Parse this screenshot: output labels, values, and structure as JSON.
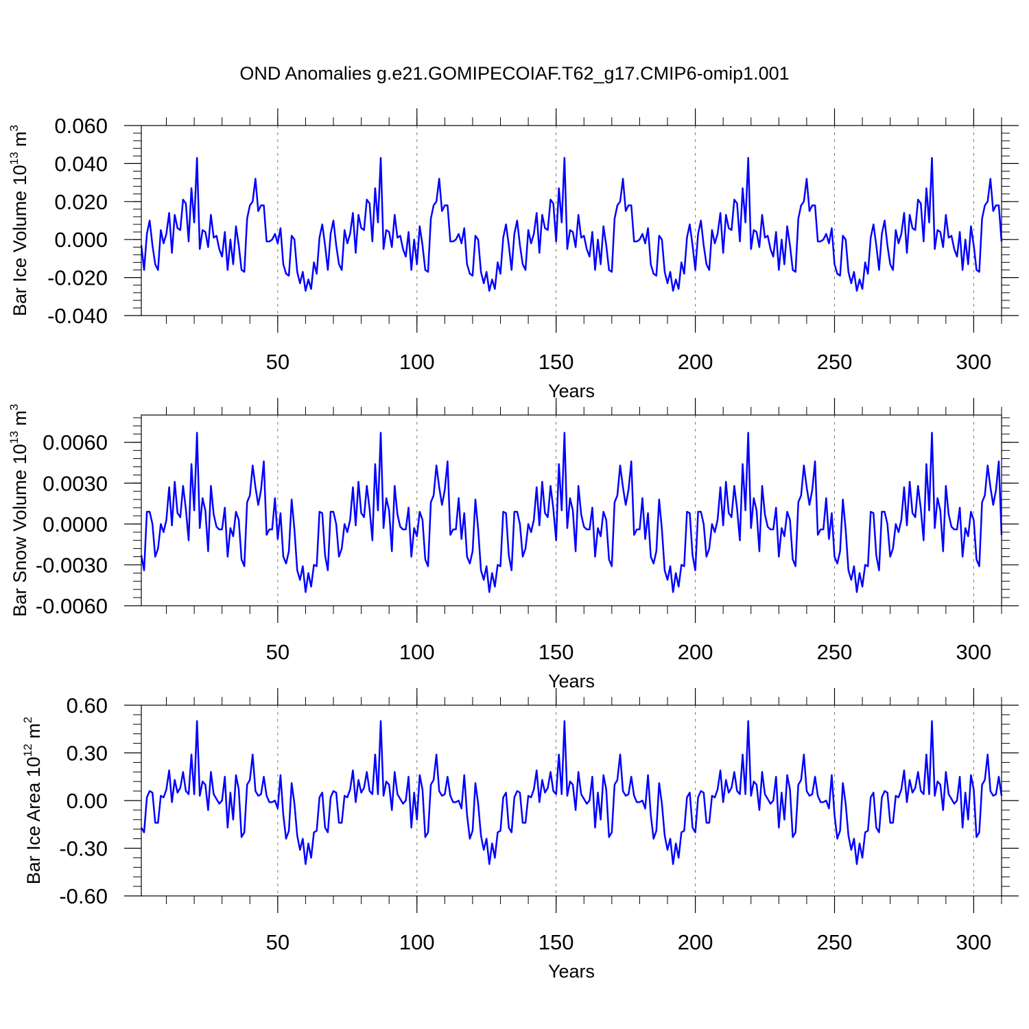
{
  "title": "OND Anomalies g.e21.GOMIPECOIAF.T62_g17.CMIP6-omip1.001",
  "chart_data": [
    {
      "type": "line",
      "ylabel": "Bar Ice Volume 10",
      "ylabel_exp": "13",
      "ylabel_unit": " m",
      "ylabel_unit_exp": "3",
      "xlabel": "Years",
      "xlim": [
        1,
        310
      ],
      "ylim": [
        -0.04,
        0.06
      ],
      "yticks": [
        -0.04,
        -0.02,
        0.0,
        0.02,
        0.04,
        0.06
      ],
      "ytick_labels": [
        "-0.040",
        "-0.020",
        "0.000",
        "0.020",
        "0.040",
        "0.060"
      ],
      "xticks": [
        50,
        100,
        150,
        200,
        250,
        300
      ],
      "xtick_labels": [
        "50",
        "100",
        "150",
        "200",
        "250",
        "300"
      ],
      "color": "#0000ff",
      "cycle_values": [
        -0.003,
        -0.016,
        0.003,
        0.01,
        -0.003,
        -0.013,
        -0.016,
        0.005,
        -0.002,
        0.003,
        0.014,
        -0.007,
        0.013,
        0.006,
        0.005,
        0.021,
        0.019,
        -0.001,
        0.027,
        0.009,
        0.043,
        -0.005,
        0.005,
        0.004,
        -0.004,
        0.013,
        0.001,
        0.002,
        -0.005,
        -0.009,
        0.004,
        -0.016,
        0.0,
        -0.013,
        0.007,
        -0.003,
        -0.016,
        -0.017,
        0.011,
        0.018,
        0.02,
        0.032,
        0.015,
        0.018,
        0.018,
        -0.001,
        -0.001,
        0.0,
        0.003,
        -0.002,
        0.006,
        -0.013,
        -0.018,
        -0.019,
        0.002,
        0.0,
        -0.017,
        -0.023,
        -0.017,
        -0.027,
        -0.021,
        -0.026,
        -0.012,
        -0.018,
        0.001,
        0.008
      ]
    },
    {
      "type": "line",
      "ylabel": "Bar Snow Volume 10",
      "ylabel_exp": "13",
      "ylabel_unit": " m",
      "ylabel_unit_exp": "3",
      "xlabel": "Years",
      "xlim": [
        1,
        310
      ],
      "ylim": [
        -0.006,
        0.008
      ],
      "yticks": [
        -0.006,
        -0.003,
        0.0,
        0.003,
        0.006
      ],
      "ytick_labels": [
        "-0.0060",
        "-0.0030",
        "0.0000",
        "0.0030",
        "0.0060"
      ],
      "xticks": [
        50,
        100,
        150,
        200,
        250,
        300
      ],
      "xtick_labels": [
        "50",
        "100",
        "150",
        "200",
        "250",
        "300"
      ],
      "color": "#0000ff",
      "cycle_values": [
        -0.0023,
        -0.0034,
        0.0009,
        0.0009,
        0.0,
        -0.0024,
        -0.0018,
        0.0,
        -0.0006,
        0.0003,
        0.0027,
        -0.0001,
        0.0031,
        0.0008,
        0.0005,
        0.0028,
        0.0011,
        -0.0012,
        0.0044,
        0.001,
        0.0067,
        -0.0003,
        0.0019,
        0.001,
        -0.002,
        0.0028,
        0.0007,
        -0.0002,
        -0.0004,
        -0.0004,
        0.0012,
        -0.0024,
        -0.0003,
        -0.0009,
        0.0009,
        0.0003,
        -0.0026,
        -0.0031,
        0.0016,
        0.0021,
        0.0043,
        0.0027,
        0.0014,
        0.0025,
        0.0046,
        -0.0008,
        -0.0004,
        -0.0004,
        0.0019,
        -0.0011,
        0.0008,
        -0.0024,
        -0.0029,
        -0.002,
        0.0018,
        -0.0004,
        -0.0034,
        -0.0041,
        -0.0031,
        -0.005,
        -0.0036,
        -0.0046,
        -0.003,
        -0.0031,
        0.0009,
        0.0008
      ]
    },
    {
      "type": "line",
      "ylabel": "Bar Ice Area 10",
      "ylabel_exp": "12",
      "ylabel_unit": " m",
      "ylabel_unit_exp": "2",
      "xlabel": "Years",
      "xlim": [
        1,
        310
      ],
      "ylim": [
        -0.6,
        0.6
      ],
      "yticks": [
        -0.6,
        -0.3,
        0.0,
        0.3,
        0.6
      ],
      "ytick_labels": [
        "-0.60",
        "-0.30",
        "0.00",
        "0.30",
        "0.60"
      ],
      "xticks": [
        50,
        100,
        150,
        200,
        250,
        300
      ],
      "xtick_labels": [
        "50",
        "100",
        "150",
        "200",
        "250",
        "300"
      ],
      "color": "#0000ff",
      "cycle_values": [
        -0.17,
        -0.2,
        0.02,
        0.06,
        0.05,
        -0.14,
        -0.14,
        0.03,
        0.02,
        0.07,
        0.19,
        -0.01,
        0.13,
        0.05,
        0.08,
        0.18,
        0.06,
        0.04,
        0.29,
        0.04,
        0.5,
        0.03,
        0.12,
        0.1,
        -0.06,
        0.18,
        0.04,
        0.01,
        -0.02,
        0.0,
        0.15,
        -0.17,
        0.05,
        -0.12,
        0.16,
        0.07,
        -0.23,
        -0.2,
        0.1,
        0.13,
        0.29,
        0.06,
        0.03,
        0.04,
        0.15,
        0.03,
        -0.01,
        -0.01,
        0.0,
        -0.05,
        0.16,
        -0.09,
        -0.24,
        -0.19,
        0.11,
        -0.02,
        -0.22,
        -0.31,
        -0.24,
        -0.4,
        -0.27,
        -0.36,
        -0.2,
        -0.19,
        0.02,
        0.05
      ]
    }
  ]
}
